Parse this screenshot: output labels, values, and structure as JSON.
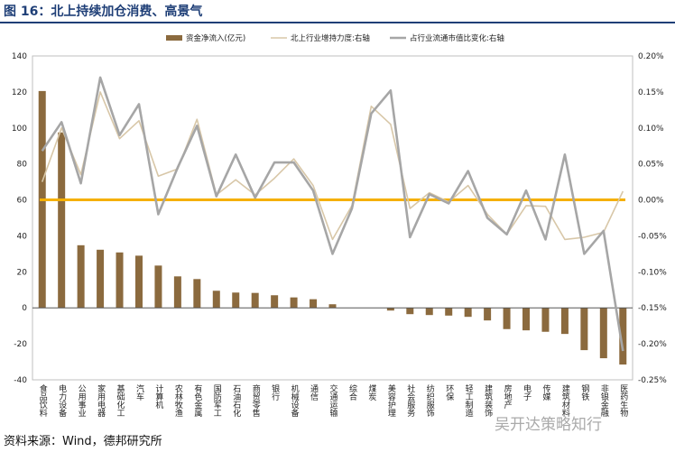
{
  "header": {
    "title": "图 16：北上持续加仓消费、高景气"
  },
  "footer": {
    "source": "资料来源：Wind，德邦研究所",
    "watermark": "吴开达策略知行"
  },
  "colors": {
    "bar": "#8b6a3e",
    "line_add": "#d8c7a8",
    "line_share": "#a6a6a6",
    "zero_line": "#f5b000",
    "title": "#1f3f77"
  },
  "chart_data": {
    "type": "bar",
    "categories": [
      "食品饮料",
      "电力设备",
      "公用事业",
      "家用电器",
      "基础化工",
      "汽车",
      "计算机",
      "农林牧渔",
      "有色金属",
      "国防军工",
      "石油石化",
      "商贸零售",
      "银行",
      "机械设备",
      "通信",
      "交通运输",
      "综合",
      "煤炭",
      "美容护理",
      "社会服务",
      "纺织服饰",
      "环保",
      "轻工制造",
      "建筑装饰",
      "房地产",
      "电子",
      "传媒",
      "建筑材料",
      "钢铁",
      "非银金融",
      "医药生物"
    ],
    "series": [
      {
        "name": "资金净流入(亿元)",
        "axis": "left",
        "type": "bar",
        "values": [
          120.5,
          97.5,
          34.8,
          32.3,
          30.8,
          29.0,
          23.5,
          17.5,
          16.0,
          9.5,
          8.5,
          8.3,
          7.0,
          5.8,
          4.8,
          2.0,
          0,
          0,
          -1.5,
          -3.5,
          -4.0,
          -4.3,
          -5.0,
          -7.0,
          -11.8,
          -12.5,
          -13.3,
          -14.5,
          -23.5,
          -28.0,
          -31.5
        ]
      },
      {
        "name": "北上行业增持力度:右轴",
        "axis": "right",
        "type": "line",
        "values": [
          0.025,
          0.1,
          0.035,
          0.15,
          0.085,
          0.11,
          0.033,
          0.043,
          0.112,
          0.007,
          0.028,
          0.007,
          0.03,
          0.057,
          0.02,
          -0.055,
          -0.008,
          0.13,
          0.105,
          -0.012,
          0.01,
          -0.003,
          0.02,
          -0.02,
          -0.048,
          -0.008,
          -0.009,
          -0.055,
          -0.052,
          -0.045,
          0.012
        ]
      },
      {
        "name": "占行业流通市值比变化:右轴",
        "axis": "right",
        "type": "line",
        "values": [
          0.068,
          0.108,
          0.023,
          0.17,
          0.09,
          0.133,
          -0.02,
          0.045,
          0.103,
          0.005,
          0.063,
          0.003,
          0.052,
          0.052,
          0.013,
          -0.075,
          -0.012,
          0.12,
          0.152,
          -0.052,
          0.008,
          -0.005,
          0.04,
          -0.025,
          -0.048,
          0.013,
          -0.055,
          0.063,
          -0.075,
          -0.043,
          -0.21
        ]
      }
    ],
    "ylim_left": [
      -40,
      140
    ],
    "yticks_left": [
      "140",
      "120",
      "100",
      "80",
      "60",
      "40",
      "20",
      "0",
      "-20",
      "-40"
    ],
    "ylim_right": [
      -0.25,
      0.2
    ],
    "yticks_right": [
      "0.20%",
      "0.15%",
      "0.10%",
      "0.05%",
      "0.00%",
      "-0.05%",
      "-0.10%",
      "-0.15%",
      "-0.20%",
      "-0.25%"
    ],
    "grid": false,
    "legend_position": "top"
  }
}
